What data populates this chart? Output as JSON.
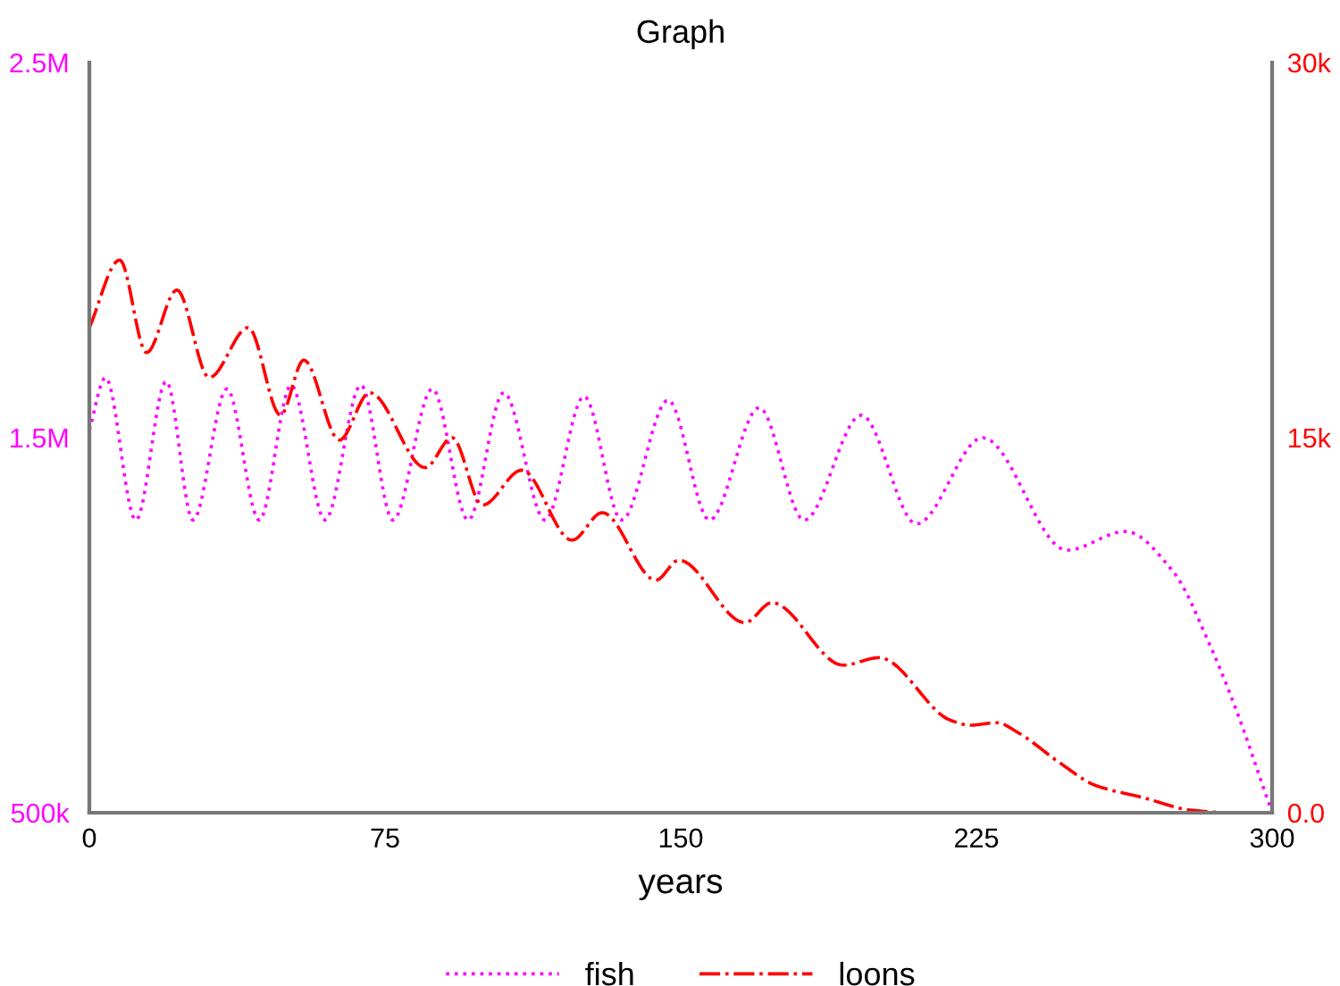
{
  "chart_data": {
    "type": "line",
    "title": "Graph",
    "xlabel": "years",
    "xlim": [
      0,
      300
    ],
    "xticks": [
      0,
      75,
      150,
      225,
      300
    ],
    "ylim": [
      500000,
      2500000
    ],
    "yticks": [
      {
        "value": 500000,
        "label": "500k"
      },
      {
        "value": 1500000,
        "label": "1.5M"
      },
      {
        "value": 2500000,
        "label": "2.5M"
      }
    ],
    "y2lim": [
      0,
      30000
    ],
    "y2ticks": [
      {
        "value": 0,
        "label": "0.0"
      },
      {
        "value": 15000,
        "label": "15k"
      },
      {
        "value": 30000,
        "label": "30k"
      }
    ],
    "legend": "bottom",
    "grid": false,
    "series": [
      {
        "name": "fish",
        "color": "#ff00ff",
        "line_style": "dotted",
        "x": [
          0,
          4.1,
          11.8,
          19.5,
          26.3,
          34.9,
          43.1,
          51.2,
          59.8,
          68.9,
          77.0,
          87.0,
          96.1,
          105.1,
          115.6,
          125.5,
          135.0,
          146.8,
          157.3,
          169.9,
          181.3,
          195.8,
          209.8,
          226.6,
          247.9,
          262.8,
          275.1,
          284.1,
          291.4,
          297.7,
          300
        ],
        "values": [
          1520000,
          1660000,
          1280000,
          1650000,
          1280000,
          1630000,
          1280000,
          1640000,
          1280000,
          1640000,
          1280000,
          1630000,
          1280000,
          1620000,
          1280000,
          1610000,
          1280000,
          1600000,
          1280000,
          1580000,
          1280000,
          1560000,
          1270000,
          1500000,
          1200000,
          1250000,
          1140000,
          950000,
          760000,
          570000,
          500000
        ]
      },
      {
        "name": "loons",
        "color": "#ff0000",
        "line_style": "dashdot",
        "axis": "y2",
        "x": [
          0,
          7.7,
          14.5,
          22.2,
          30.4,
          40.3,
          48.5,
          54.4,
          63.4,
          71.1,
          85.2,
          92.0,
          99.7,
          109.7,
          122.4,
          130.1,
          143.7,
          149.5,
          166.3,
          173.1,
          191.2,
          200.3,
          218.4,
          223.4,
          230.2,
          235.6,
          246.1,
          255.1,
          267.4,
          279.6,
          290.0,
          300
        ],
        "values": [
          19400,
          22100,
          18400,
          20900,
          17400,
          19400,
          15900,
          18100,
          14900,
          16800,
          13800,
          15000,
          12300,
          13700,
          10900,
          12000,
          9300,
          10100,
          7600,
          8400,
          5900,
          6200,
          3700,
          3500,
          3600,
          3200,
          2000,
          1100,
          600,
          100,
          0,
          0
        ]
      }
    ]
  }
}
